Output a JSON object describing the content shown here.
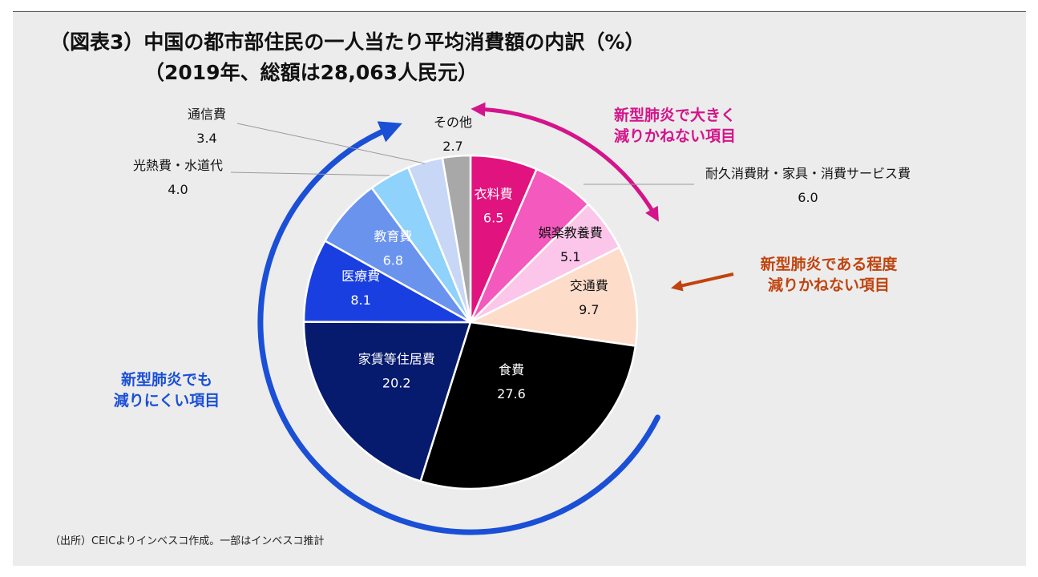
{
  "title": {
    "line1": "（図表3）中国の都市部住民の一人当たり平均消費額の内訳（%）",
    "line2": "（2019年、総額は28,063人民元）"
  },
  "source": "（出所）CEICよりインベスコ作成。一部はインベスコ推計",
  "chart_data": {
    "type": "pie",
    "start": "12 o'clock",
    "direction": "clockwise",
    "slices": [
      {
        "label": "衣料費",
        "value": "6.5",
        "color": "#e0137f",
        "text_color": "#ffffff"
      },
      {
        "label": "耐久消費財・家具・消費サービス費",
        "value": "6.0",
        "color": "#f459bd",
        "text_color": "#111111"
      },
      {
        "label": "娯楽教養費",
        "value": "5.1",
        "color": "#fbc6ea",
        "text_color": "#111111"
      },
      {
        "label": "交通費",
        "value": "9.7",
        "color": "#fddcca",
        "text_color": "#111111"
      },
      {
        "label": "食費",
        "value": "27.6",
        "color": "#000000",
        "text_color": "#ffffff"
      },
      {
        "label": "家賃等住居費",
        "value": "20.2",
        "color": "#061a6e",
        "text_color": "#ffffff"
      },
      {
        "label": "医療費",
        "value": "8.1",
        "color": "#1a3fe0",
        "text_color": "#ffffff"
      },
      {
        "label": "教育費",
        "value": "6.8",
        "color": "#6a93ee",
        "text_color": "#ffffff"
      },
      {
        "label": "光熱費・水道代",
        "value": "4.0",
        "color": "#8fd2fb",
        "text_color": "#111111"
      },
      {
        "label": "通信費",
        "value": "3.4",
        "color": "#c8d7f6",
        "text_color": "#111111"
      },
      {
        "label": "その他",
        "value": "2.7",
        "color": "#a8a8a8",
        "text_color": "#111111"
      }
    ],
    "annotations": [
      {
        "line1": "新型肺炎で大きく",
        "line2": "減りかねない項目",
        "color": "#d4148a"
      },
      {
        "line1": "新型肺炎である程度",
        "line2": "減りかねない項目",
        "color": "#c0440e"
      },
      {
        "line1": "新型肺炎でも",
        "line2": "減りにくい項目",
        "color": "#1a4fd6"
      }
    ]
  }
}
